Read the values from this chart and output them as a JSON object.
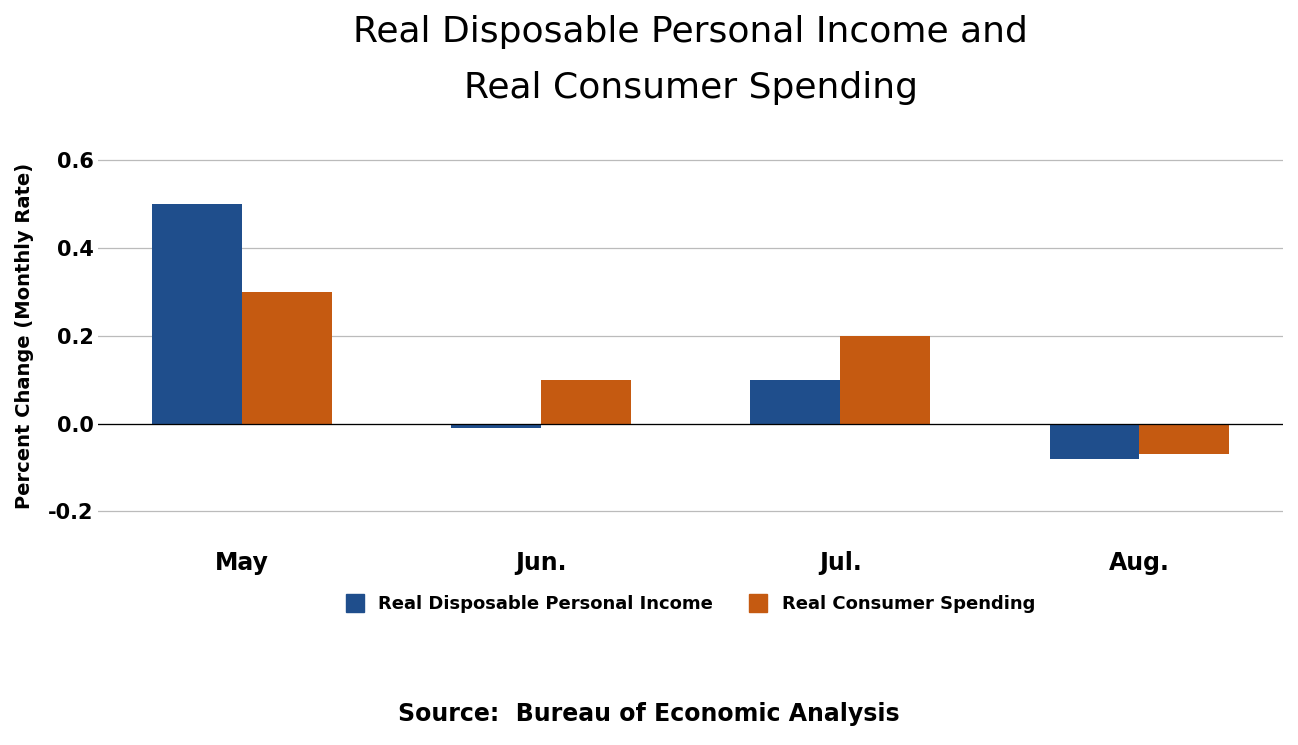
{
  "title_line1": "Real Disposable Personal Income and",
  "title_line2": "Real Consumer Spending",
  "ylabel": "Percent Change (Monthly Rate)",
  "source": "Source:  Bureau of Economic Analysis",
  "categories": [
    "May",
    "Jun.",
    "Jul.",
    "Aug."
  ],
  "income_values": [
    0.5,
    -0.01,
    0.1,
    -0.08
  ],
  "spending_values": [
    0.3,
    0.1,
    0.2,
    -0.07
  ],
  "income_color": "#1F4E8C",
  "spending_color": "#C55A11",
  "ylim": [
    -0.28,
    0.68
  ],
  "yticks": [
    -0.2,
    0.0,
    0.2,
    0.4,
    0.6
  ],
  "bar_width": 0.3,
  "legend_income": "Real Disposable Personal Income",
  "legend_spending": "Real Consumer Spending",
  "title_fontsize": 26,
  "axis_label_fontsize": 14,
  "tick_fontsize": 15,
  "legend_fontsize": 13,
  "source_fontsize": 17,
  "background_color": "#FFFFFF",
  "grid_color": "#BBBBBB"
}
